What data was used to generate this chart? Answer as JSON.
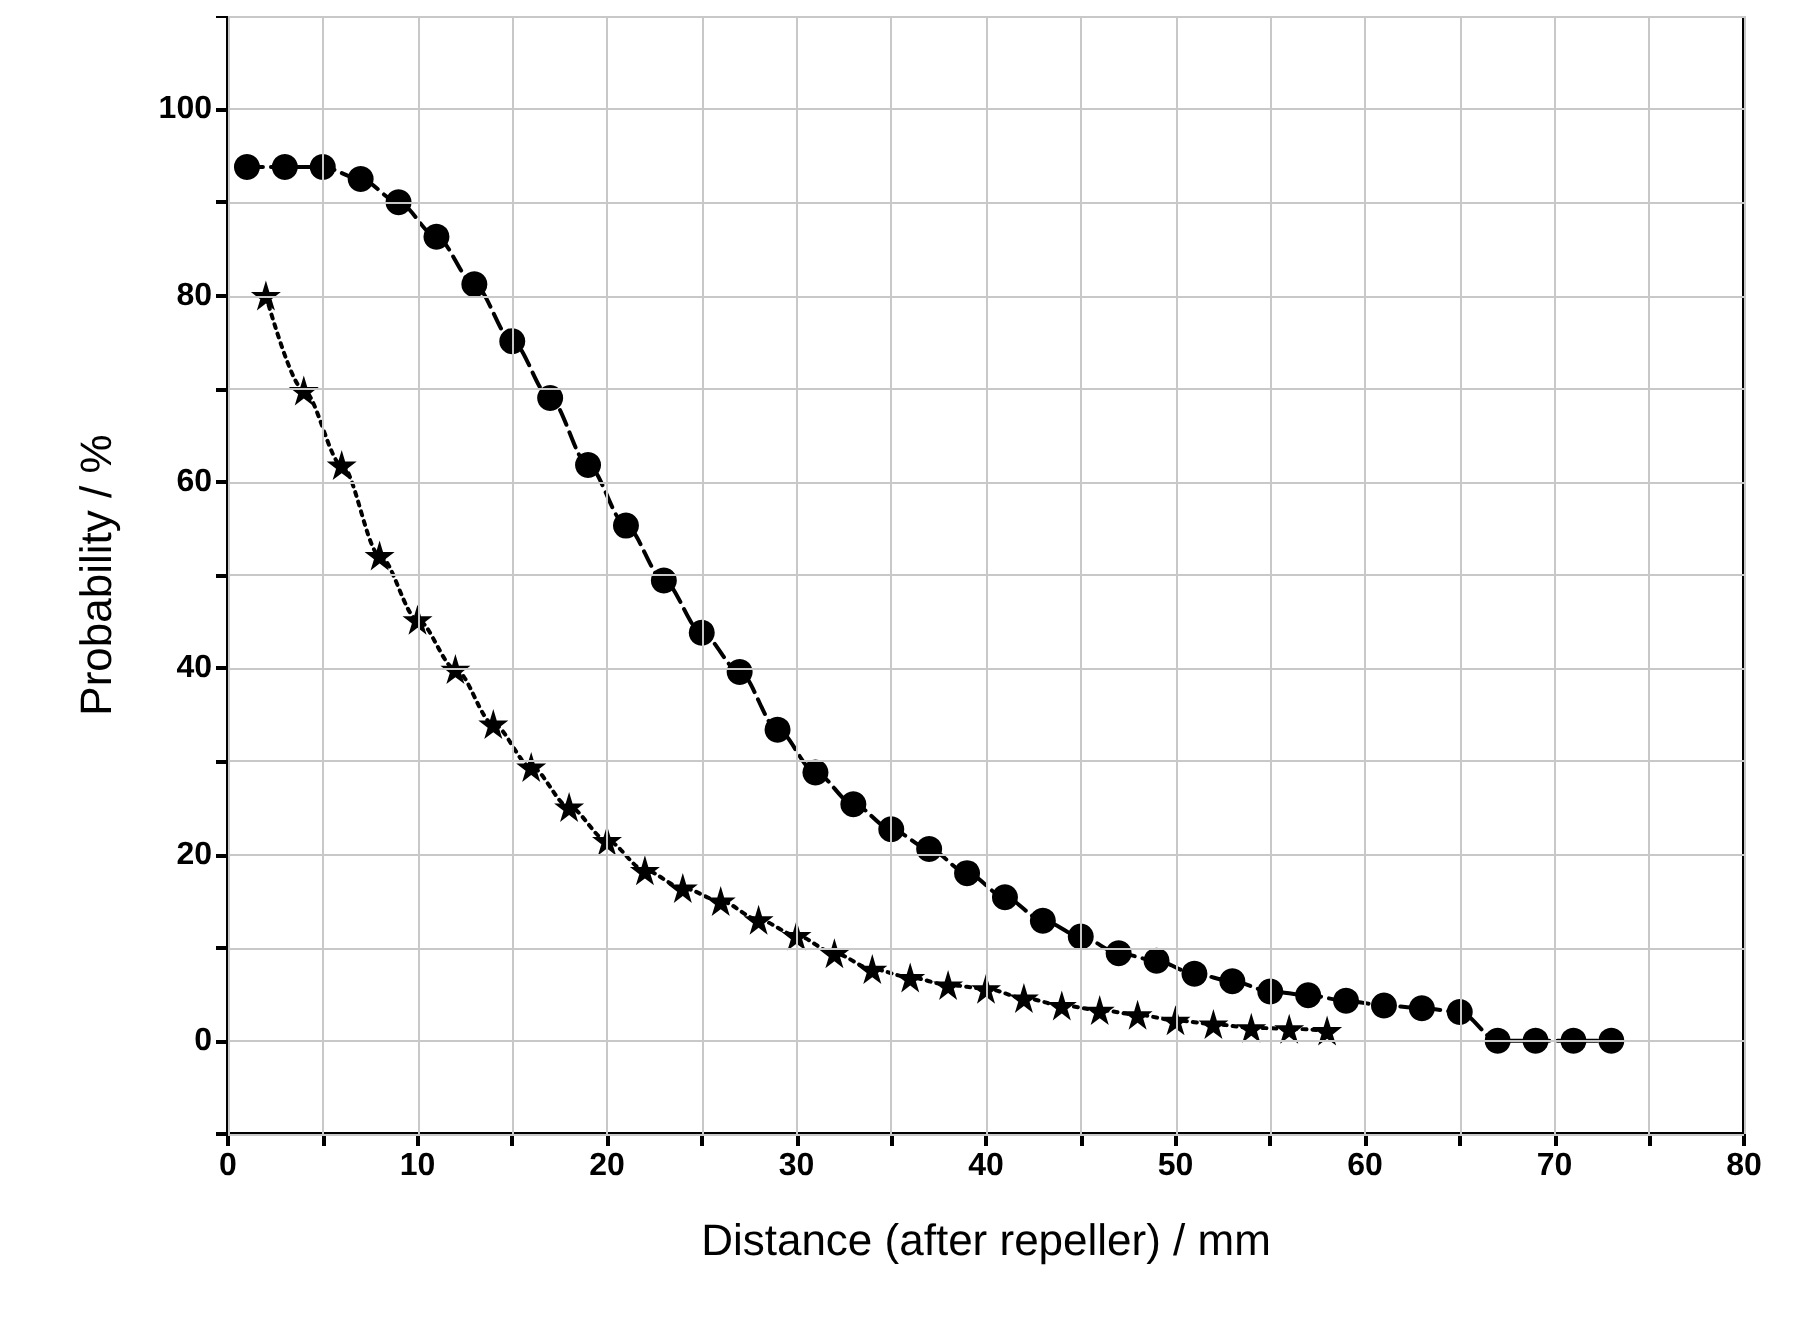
{
  "chart_data": {
    "type": "line",
    "xlabel": "Distance (after repeller) / mm",
    "ylabel": "Probability / %",
    "xlim": [
      0,
      80
    ],
    "ylim": [
      -10,
      110
    ],
    "xticks": [
      0,
      {
        "value": 5,
        "label": null
      },
      10,
      {
        "value": 15,
        "label": null
      },
      20,
      {
        "value": 25,
        "label": null
      },
      30,
      {
        "value": 35,
        "label": null
      },
      40,
      {
        "value": 45,
        "label": null
      },
      50,
      {
        "value": 55,
        "label": null
      },
      60,
      {
        "value": 65,
        "label": null
      },
      70,
      {
        "value": 75,
        "label": null
      },
      80
    ],
    "yticks": [
      {
        "value": -10,
        "label": null
      },
      0,
      {
        "value": 10,
        "label": null
      },
      20,
      {
        "value": 30,
        "label": null
      },
      40,
      {
        "value": 50,
        "label": null
      },
      60,
      {
        "value": 70,
        "label": null
      },
      80,
      {
        "value": 90,
        "label": null
      },
      100,
      {
        "value": 110,
        "label": null
      }
    ],
    "grid": true,
    "series": [
      {
        "color": "#000000",
        "marker": "circle",
        "line_style": "dashed",
        "x": [
          1,
          3,
          5,
          7,
          9,
          11,
          13,
          15,
          17,
          19,
          21,
          23,
          25,
          27,
          29,
          31,
          33,
          35,
          37,
          39,
          41,
          43,
          45,
          47,
          49,
          51,
          53,
          55,
          57,
          59,
          61,
          63,
          65,
          67,
          69,
          71,
          73
        ],
        "values": [
          93.8,
          93.8,
          93.8,
          92.5,
          90,
          86.3,
          81.2,
          75.1,
          69,
          61.8,
          55.3,
          49.4,
          43.8,
          39.6,
          33.4,
          28.8,
          25.4,
          22.7,
          20.6,
          18,
          15.4,
          12.9,
          11.2,
          9.4,
          8.6,
          7.2,
          6.4,
          5.3,
          4.9,
          4.3,
          3.8,
          3.5,
          3.1,
          0,
          0,
          0,
          0
        ]
      },
      {
        "color": "#000000",
        "marker": "star",
        "line_style": "dotted",
        "x": [
          2,
          4,
          6,
          8,
          10,
          12,
          14,
          16,
          18,
          20,
          22,
          24,
          26,
          28,
          30,
          32,
          34,
          36,
          38,
          40,
          42,
          44,
          46,
          48,
          50,
          52,
          54,
          56,
          58
        ],
        "values": [
          80,
          69.8,
          61.8,
          52.1,
          45.2,
          39.9,
          34,
          29.4,
          25.1,
          21.5,
          18.3,
          16.4,
          15,
          13,
          11.3,
          9.4,
          7.7,
          6.8,
          6,
          5.6,
          4.6,
          3.8,
          3.3,
          2.8,
          2.2,
          1.8,
          1.4,
          1.3,
          1.1
        ]
      }
    ]
  }
}
